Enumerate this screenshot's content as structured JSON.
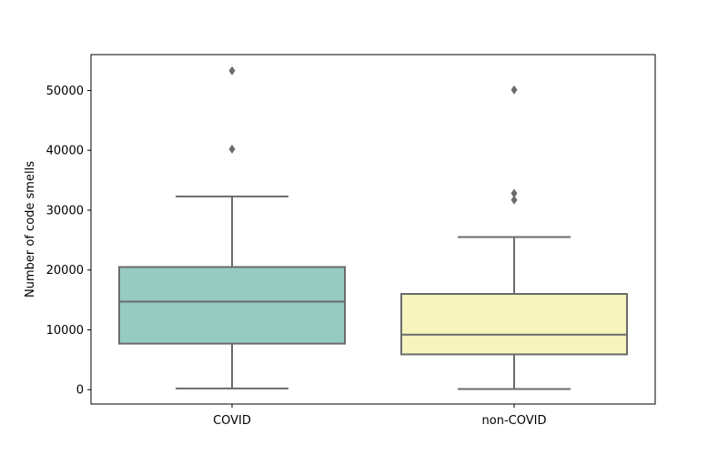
{
  "chart_data": {
    "type": "box",
    "title": "",
    "xlabel": "",
    "ylabel": "Number of code smells",
    "ylim": [
      -2400,
      56000
    ],
    "yticks": [
      0,
      10000,
      20000,
      30000,
      40000,
      50000
    ],
    "ytick_labels": [
      "0",
      "10000",
      "20000",
      "30000",
      "40000",
      "50000"
    ],
    "grid": false,
    "categories": [
      "COVID",
      "non-COVID"
    ],
    "boxes": [
      {
        "category": "COVID",
        "whisker_low": 200,
        "q1": 7700,
        "median": 14700,
        "q3": 20500,
        "whisker_high": 32300,
        "outliers": [
          40200,
          53300
        ],
        "color": "#96cbc1"
      },
      {
        "category": "non-COVID",
        "whisker_low": 100,
        "q1": 5900,
        "median": 9200,
        "q3": 16000,
        "whisker_high": 25500,
        "outliers": [
          31700,
          32800,
          50100
        ],
        "color": "#f5f5bd"
      }
    ],
    "line_color": "#6b6b6b"
  }
}
